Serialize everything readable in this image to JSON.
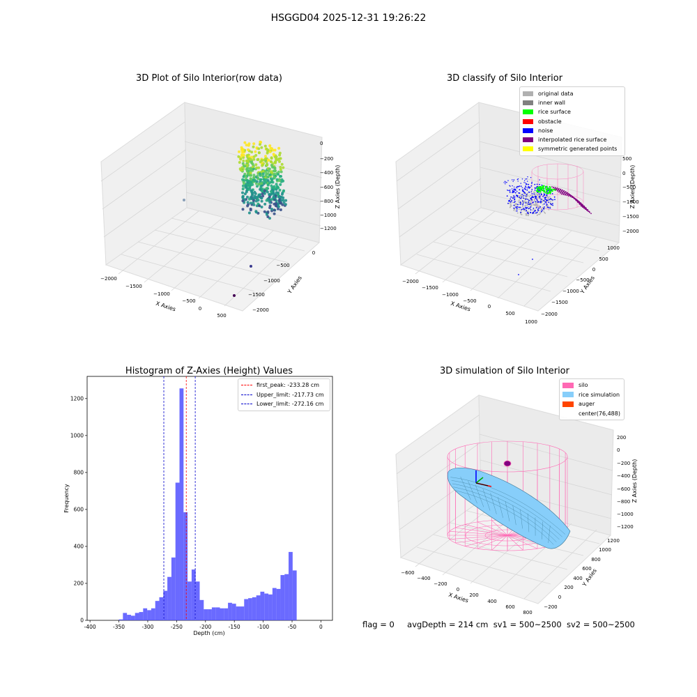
{
  "suptitle": "HSGGD04 2025-12-31 19:26:22",
  "footer": {
    "flag": "flag = 0",
    "avg": "avgDepth = 214 cm",
    "sv1": "sv1 = 500~2500",
    "sv2": "sv2 = 500~2500"
  },
  "colors": {
    "hist_bar": "#5050ff",
    "first_peak": "#ff0000",
    "limits": "#0000cc",
    "silo": "#ff69b4",
    "rice": "#87cefa",
    "auger": "#ff4500",
    "original": "#b0b0b0",
    "inner_wall": "#808080",
    "rice_surface": "#00ff00",
    "obstacle": "#ff0000",
    "noise": "#0000ff",
    "interp": "#800080",
    "symmetric": "#ffff00"
  },
  "chart_data": [
    {
      "type": "scatter",
      "subtype": "3d",
      "title": "3D Plot of Silo Interior(row data)",
      "xlabel": "X Axies",
      "ylabel": "Y Axies",
      "zlabel": "Z Axies (Depth)",
      "xticks": [
        "−2000",
        "−1500",
        "−1000",
        "−500",
        "0",
        "500"
      ],
      "yticks": [
        "0",
        "−500",
        "−1000",
        "−1500",
        "−2000"
      ],
      "zticks": [
        "0",
        "−200",
        "−400",
        "−600",
        "−800",
        "−1000",
        "−1200"
      ],
      "colormap": "viridis",
      "grid": true
    },
    {
      "type": "scatter",
      "subtype": "3d",
      "title": "3D classify of Silo Interior",
      "xlabel": "X Axies",
      "ylabel": "Y Axies",
      "zlabel": "Z Axies (Depth)",
      "xticks": [
        "−2000",
        "−1500",
        "−1000",
        "−500",
        "0",
        "500",
        "1000"
      ],
      "yticks": [
        "1000",
        "500",
        "0",
        "−500",
        "−1000",
        "−1500",
        "−2000"
      ],
      "zticks": [
        "500",
        "0",
        "−500",
        "−1000",
        "−1500",
        "−2000"
      ],
      "legend": [
        "original data",
        "inner wall",
        "rice surface",
        "obstacle",
        "noise",
        "interpolated rice surface",
        "symmetric generated points"
      ],
      "legend_position": "top-right",
      "grid": true
    },
    {
      "type": "bar",
      "subtype": "histogram",
      "title": "Histogram of Z-Axies (Height) Values",
      "xlabel": "Depth (cm)",
      "ylabel": "Frequency",
      "xlim": [
        -405,
        20
      ],
      "ylim": [
        0,
        1320
      ],
      "xticks": [
        -400,
        -350,
        -300,
        -250,
        -200,
        -150,
        -100,
        -50,
        0
      ],
      "yticks": [
        0,
        200,
        400,
        600,
        800,
        1000,
        1200
      ],
      "bin_start": -350,
      "bin_width": 7,
      "values": [
        5,
        40,
        30,
        25,
        40,
        45,
        65,
        55,
        65,
        105,
        125,
        160,
        235,
        340,
        745,
        1255,
        585,
        210,
        275,
        210,
        110,
        60,
        60,
        70,
        70,
        65,
        65,
        95,
        90,
        75,
        75,
        115,
        120,
        125,
        135,
        155,
        145,
        140,
        175,
        170,
        245,
        250,
        370,
        270
      ],
      "lines": [
        {
          "label": "first_peak: -233.28 cm",
          "x": -233.28,
          "color": "#ff0000"
        },
        {
          "label": "Upper_limit: -217.73 cm",
          "x": -217.73,
          "color": "#0000cc"
        },
        {
          "label": "Lower_limit: -272.16 cm",
          "x": -272.16,
          "color": "#0000cc"
        }
      ],
      "legend_position": "top-right",
      "grid": false
    },
    {
      "type": "scatter",
      "subtype": "3d-surface",
      "title": "3D simulation of Silo Interior",
      "xlabel": "X Axies",
      "ylabel": "Y Axies",
      "zlabel": "Z Axies (Depth)",
      "xticks": [
        "−600",
        "−400",
        "−200",
        "0",
        "200",
        "400",
        "600",
        "800"
      ],
      "yticks": [
        "1200",
        "1000",
        "800",
        "600",
        "400",
        "200",
        "0",
        "−200"
      ],
      "zticks": [
        "200",
        "0",
        "−200",
        "−400",
        "−600",
        "−800",
        "−1000",
        "−1200"
      ],
      "legend": [
        "silo",
        "rice simulation",
        "auger",
        "center(76,488)"
      ],
      "legend_position": "top-right",
      "grid": true
    }
  ]
}
